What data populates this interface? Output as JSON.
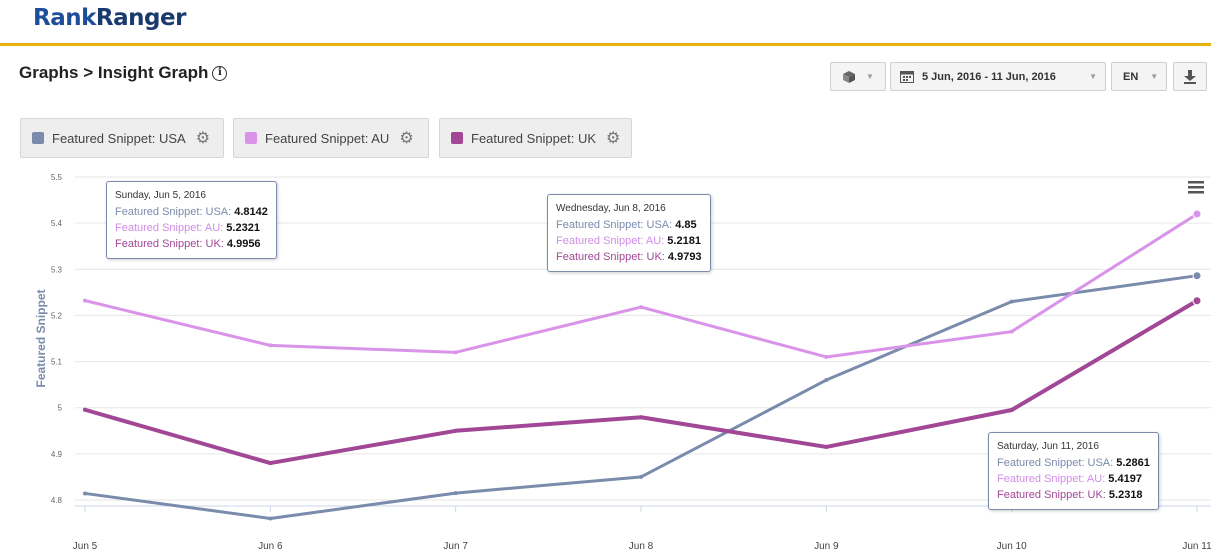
{
  "brand": {
    "part1": "Rank",
    "part2": "Ranger"
  },
  "page": {
    "title": "Graphs > Insight Graph",
    "info_icon": "info-icon"
  },
  "toolbar": {
    "cube_icon": "cube-icon",
    "date_range": "5 Jun, 2016 - 11 Jun, 2016",
    "language": "EN",
    "download_icon": "download-icon"
  },
  "legend": [
    {
      "label": "Featured Snippet: USA",
      "color": "#7a8bac"
    },
    {
      "label": "Featured Snippet: AU",
      "color": "#d994ea"
    },
    {
      "label": "Featured Snippet: UK",
      "color": "#a14796"
    }
  ],
  "chart_data": {
    "type": "line",
    "title": "",
    "xlabel": "",
    "ylabel": "Featured Snippet",
    "categories": [
      "Jun 5",
      "Jun 6",
      "Jun 7",
      "Jun 8",
      "Jun 9",
      "Jun 10",
      "Jun 11"
    ],
    "y_tick_labels": [
      "4.8",
      "4.9",
      "5",
      "5.1",
      "5.2",
      "5.3",
      "5.4",
      "5.5"
    ],
    "y_tick_values": [
      4.8,
      4.9,
      5.0,
      5.1,
      5.2,
      5.3,
      5.4,
      5.5
    ],
    "ylim": [
      4.8,
      5.5
    ],
    "grid": true,
    "series": [
      {
        "name": "Featured Snippet: USA",
        "color": "#7a8bac",
        "values": [
          4.8142,
          4.76,
          4.815,
          4.85,
          5.06,
          5.23,
          5.2861
        ]
      },
      {
        "name": "Featured Snippet: AU",
        "color": "#d994ea",
        "values": [
          5.2321,
          5.135,
          5.12,
          5.2181,
          5.11,
          5.165,
          5.4197
        ]
      },
      {
        "name": "Featured Snippet: UK",
        "color": "#a14796",
        "values": [
          4.9956,
          4.88,
          4.95,
          4.9793,
          4.915,
          4.995,
          5.2318
        ]
      }
    ],
    "tooltips": [
      {
        "date": "Sunday, Jun 5, 2016",
        "rows": [
          {
            "label": "Featured Snippet: USA:",
            "value": "4.8142"
          },
          {
            "label": "Featured Snippet: AU:",
            "value": "5.2321"
          },
          {
            "label": "Featured Snippet: UK:",
            "value": "4.9956"
          }
        ]
      },
      {
        "date": "Wednesday, Jun 8, 2016",
        "rows": [
          {
            "label": "Featured Snippet: USA:",
            "value": "4.85"
          },
          {
            "label": "Featured Snippet: AU:",
            "value": "5.2181"
          },
          {
            "label": "Featured Snippet: UK:",
            "value": "4.9793"
          }
        ]
      },
      {
        "date": "Saturday, Jun 11, 2016",
        "rows": [
          {
            "label": "Featured Snippet: USA:",
            "value": "5.2861"
          },
          {
            "label": "Featured Snippet: AU:",
            "value": "5.4197"
          },
          {
            "label": "Featured Snippet: UK:",
            "value": "5.2318"
          }
        ]
      }
    ],
    "menu_icon": "hamburger-menu-icon"
  }
}
